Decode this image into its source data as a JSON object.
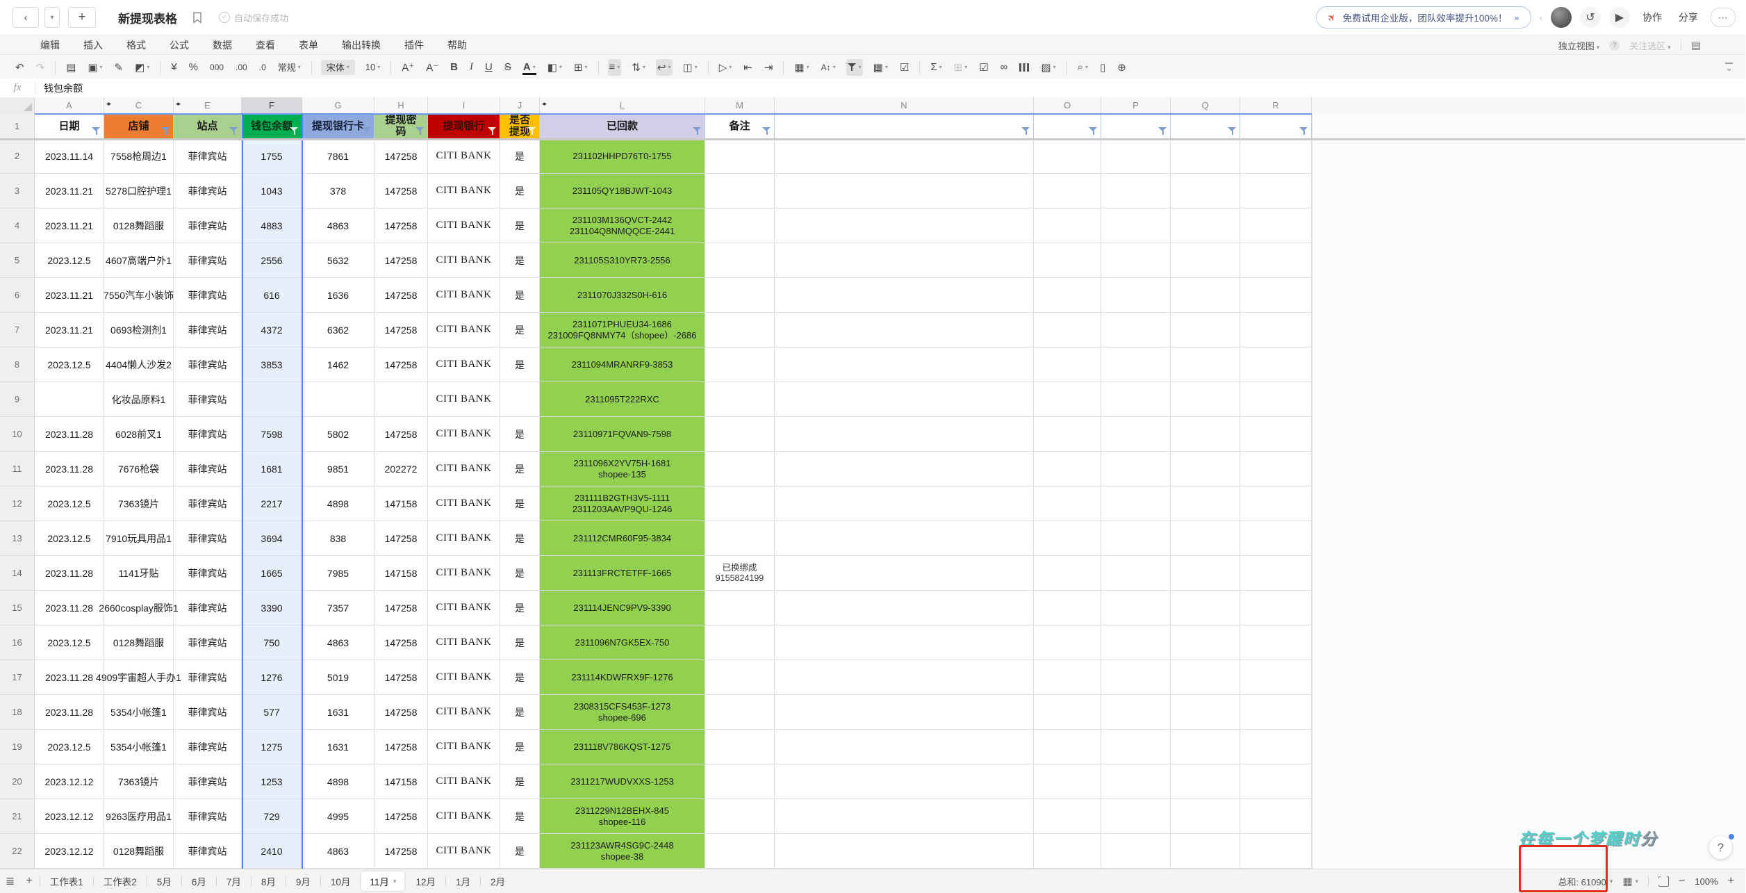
{
  "title_bar": {
    "title": "新提现表格",
    "autosave": "自动保存成功",
    "promo_text": "免费试用企业版，团队效率提升100%！",
    "promo_chevron": "»",
    "collab_label": "协作",
    "share_label": "分享"
  },
  "menu": {
    "items": [
      "编辑",
      "插入",
      "格式",
      "公式",
      "数据",
      "查看",
      "表单",
      "输出转换",
      "插件",
      "帮助"
    ],
    "right": {
      "independent_view": "独立视图",
      "follow_selection": "关注选区"
    }
  },
  "toolbar": {
    "number_format": "常规",
    "font_name": "宋体",
    "font_size": "10",
    "currency": "¥",
    "percent": "%",
    "thousand": "000",
    "dec_inc": ".00",
    "dec_dec": ".0"
  },
  "formula_bar": {
    "fx": "fx",
    "value": "钱包余额"
  },
  "grid": {
    "selected_column": "F",
    "selected_cell_value": "钱包余额",
    "column_letters": [
      "A",
      "C",
      "E",
      "F",
      "G",
      "H",
      "I",
      "J",
      "L",
      "M",
      "N",
      "O",
      "P",
      "Q",
      "R"
    ],
    "hidden_after": [
      "A",
      "C",
      "J"
    ],
    "header_cells": [
      {
        "label": "日期",
        "bg": "#ffffff",
        "fg": "#1a1a1a",
        "light_funnel": false
      },
      {
        "label": "店铺",
        "bg": "#ED7D31",
        "fg": "#1a1a1a",
        "light_funnel": false
      },
      {
        "label": "站点",
        "bg": "#A9D08E",
        "fg": "#1a1a1a",
        "light_funnel": false
      },
      {
        "label": "钱包余额",
        "bg": "#00B050",
        "fg": "#0e2b14",
        "light_funnel": true
      },
      {
        "label": "提现银行卡",
        "bg": "#8EA9DB",
        "fg": "#14203a",
        "light_funnel": false
      },
      {
        "label": "提现密码",
        "bg": "#A9D08E",
        "fg": "#1a1a1a",
        "light_funnel": false
      },
      {
        "label": "提现银行",
        "bg": "#C00000",
        "fg": "#3a0808",
        "light_funnel": true
      },
      {
        "label": "是否提现",
        "bg": "#FFC000",
        "fg": "#1a1a1a",
        "light_funnel": true
      },
      {
        "label": "已回款",
        "bg": "#D2CEE8",
        "fg": "#1a1a1a",
        "light_funnel": false
      },
      {
        "label": "备注",
        "bg": "#ffffff",
        "fg": "#1a1a1a",
        "light_funnel": false
      },
      {
        "label": "",
        "bg": "#ffffff",
        "fg": "#1a1a1a",
        "light_funnel": false
      },
      {
        "label": "",
        "bg": "#ffffff",
        "fg": "#1a1a1a",
        "light_funnel": false
      },
      {
        "label": "",
        "bg": "#ffffff",
        "fg": "#1a1a1a",
        "light_funnel": false
      },
      {
        "label": "",
        "bg": "#ffffff",
        "fg": "#1a1a1a",
        "light_funnel": false
      },
      {
        "label": "",
        "bg": "#ffffff",
        "fg": "#1a1a1a",
        "light_funnel": false
      }
    ],
    "rows": [
      [
        "2",
        "2023.11.14",
        "7558枪周边1",
        "菲律宾站",
        "1755",
        "7861",
        "147258",
        "CITI BANK",
        "是",
        "231102HHPD76T0-1755",
        ""
      ],
      [
        "3",
        "2023.11.21",
        "5278口腔护理1",
        "菲律宾站",
        "1043",
        "378",
        "147258",
        "CITI BANK",
        "是",
        "231105QY18BJWT-1043",
        ""
      ],
      [
        "4",
        "2023.11.21",
        "0128舞蹈服",
        "菲律宾站",
        "4883",
        "4863",
        "147258",
        "CITI BANK",
        "是",
        "231103M136QVCT-2442\n231104Q8NMQQCE-2441",
        ""
      ],
      [
        "5",
        "2023.12.5",
        "4607高端户外1",
        "菲律宾站",
        "2556",
        "5632",
        "147258",
        "CITI BANK",
        "是",
        "231105S310YR73-2556",
        ""
      ],
      [
        "6",
        "2023.11.21",
        "7550汽车小装饰",
        "菲律宾站",
        "616",
        "1636",
        "147258",
        "CITI BANK",
        "是",
        "2311070J332S0H-616",
        ""
      ],
      [
        "7",
        "2023.11.21",
        "0693检测剂1",
        "菲律宾站",
        "4372",
        "6362",
        "147258",
        "CITI BANK",
        "是",
        "2311071PHUEU34-1686\n231009FQ8NMY74（shopee）-2686",
        ""
      ],
      [
        "8",
        "2023.12.5",
        "4404懒人沙发2",
        "菲律宾站",
        "3853",
        "1462",
        "147258",
        "CITI BANK",
        "是",
        "2311094MRANRF9-3853",
        ""
      ],
      [
        "9",
        "",
        "化妆品原料1",
        "菲律宾站",
        "",
        "",
        "",
        "CITI BANK",
        "",
        "2311095T222RXC",
        ""
      ],
      [
        "10",
        "2023.11.28",
        "6028前叉1",
        "菲律宾站",
        "7598",
        "5802",
        "147258",
        "CITI BANK",
        "是",
        "23110971FQVAN9-7598",
        ""
      ],
      [
        "11",
        "2023.11.28",
        "7676枪袋",
        "菲律宾站",
        "1681",
        "9851",
        "202272",
        "CITI BANK",
        "是",
        "2311096X2YV75H-1681\nshopee-135",
        ""
      ],
      [
        "12",
        "2023.12.5",
        "7363镜片",
        "菲律宾站",
        "2217",
        "4898",
        "147158",
        "CITI BANK",
        "是",
        "231111B2GTH3V5-1111\n2311203AAVP9QU-1246",
        ""
      ],
      [
        "13",
        "2023.12.5",
        "7910玩具用品1",
        "菲律宾站",
        "3694",
        "838",
        "147258",
        "CITI BANK",
        "是",
        "231112CMR60F95-3834",
        ""
      ],
      [
        "14",
        "2023.11.28",
        "1141牙贴",
        "菲律宾站",
        "1665",
        "7985",
        "147158",
        "CITI BANK",
        "是",
        "231113FRCTETFF-1665",
        "已换绑成\n9155824199"
      ],
      [
        "15",
        "2023.11.28",
        "2660cosplay服饰1",
        "菲律宾站",
        "3390",
        "7357",
        "147258",
        "CITI BANK",
        "是",
        "231114JENC9PV9-3390",
        ""
      ],
      [
        "16",
        "2023.12.5",
        "0128舞蹈服",
        "菲律宾站",
        "750",
        "4863",
        "147258",
        "CITI BANK",
        "是",
        "2311096N7GK5EX-750",
        ""
      ],
      [
        "17",
        "2023.11.28",
        "4909宇宙超人手办1",
        "菲律宾站",
        "1276",
        "5019",
        "147258",
        "CITI BANK",
        "是",
        "231114KDWFRX9F-1276",
        ""
      ],
      [
        "18",
        "2023.11.28",
        "5354小帐篷1",
        "菲律宾站",
        "577",
        "1631",
        "147258",
        "CITI BANK",
        "是",
        "2308315CFS453F-1273\nshopee-696",
        ""
      ],
      [
        "19",
        "2023.12.5",
        "5354小帐篷1",
        "菲律宾站",
        "1275",
        "1631",
        "147258",
        "CITI BANK",
        "是",
        "231118V786KQST-1275",
        ""
      ],
      [
        "20",
        "2023.12.12",
        "7363镜片",
        "菲律宾站",
        "1253",
        "4898",
        "147158",
        "CITI BANK",
        "是",
        "2311217WUDVXXS-1253",
        ""
      ],
      [
        "21",
        "2023.12.12",
        "9263医疗用品1",
        "菲律宾站",
        "729",
        "4995",
        "147258",
        "CITI BANK",
        "是",
        "2311229N12BEHX-845\nshopee-116",
        ""
      ],
      [
        "22",
        "2023.12.12",
        "0128舞蹈服",
        "菲律宾站",
        "2410",
        "4863",
        "147258",
        "CITI BANK",
        "是",
        "231123AWR4SG9C-2448\nshopee-38",
        ""
      ]
    ],
    "colors": {
      "paid_green": "#92D050",
      "selection_tint": "#e7effb"
    }
  },
  "sheet_tabs": {
    "tabs": [
      "工作表1",
      "工作表2",
      "5月",
      "6月",
      "7月",
      "8月",
      "9月",
      "10月",
      "11月",
      "12月",
      "1月",
      "2月"
    ],
    "active": "11月"
  },
  "status_bar": {
    "sum_label": "总和: 61090",
    "zoom": "100%"
  },
  "watermark": {
    "main": "在每一个梦醒时",
    "tail": "分"
  }
}
